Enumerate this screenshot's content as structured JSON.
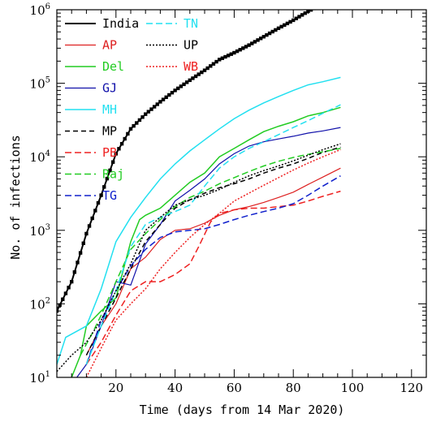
{
  "chart_data": {
    "type": "line",
    "xlabel": "Time (days from 14 Mar 2020)",
    "ylabel": "No. of infections",
    "xlim": [
      0,
      125
    ],
    "ylim": [
      10,
      1000000
    ],
    "yscale": "log",
    "x_ticks": [
      20,
      40,
      60,
      80,
      100,
      120
    ],
    "y_ticks": [
      {
        "value": 10,
        "base": "10",
        "exp": "1"
      },
      {
        "value": 100,
        "base": "10",
        "exp": "2"
      },
      {
        "value": 1000,
        "base": "10",
        "exp": "3"
      },
      {
        "value": 10000,
        "base": "10",
        "exp": "4"
      },
      {
        "value": 100000,
        "base": "10",
        "exp": "5"
      },
      {
        "value": 1000000,
        "base": "10",
        "exp": "6"
      }
    ],
    "legend_position": "top-left",
    "series": [
      {
        "name": "India",
        "color": "#000000",
        "dash": "solid",
        "width": 2,
        "markers": true,
        "x": [
          0,
          5,
          10,
          15,
          20,
          25,
          30,
          35,
          40,
          45,
          50,
          55,
          60,
          65,
          70,
          75,
          80,
          85,
          90,
          96
        ],
        "y": [
          80,
          200,
          900,
          3000,
          11000,
          24000,
          38000,
          56000,
          80000,
          110000,
          150000,
          210000,
          260000,
          330000,
          430000,
          560000,
          720000,
          950000,
          1200000,
          1550000
        ]
      },
      {
        "name": "AP",
        "color": "#dd2020",
        "dash": "solid",
        "width": 1.2,
        "x": [
          10,
          15,
          20,
          25,
          30,
          35,
          40,
          45,
          50,
          55,
          60,
          65,
          70,
          75,
          80,
          85,
          90,
          96
        ],
        "y": [
          20,
          50,
          100,
          300,
          430,
          750,
          1000,
          1050,
          1250,
          1600,
          1900,
          2100,
          2400,
          2800,
          3300,
          4200,
          5300,
          7000
        ]
      },
      {
        "name": "Del",
        "color": "#22cc22",
        "dash": "solid",
        "width": 1.5,
        "x": [
          5,
          8,
          10,
          15,
          20,
          25,
          28,
          30,
          35,
          40,
          45,
          50,
          55,
          60,
          65,
          70,
          75,
          80,
          85,
          90,
          96
        ],
        "y": [
          10,
          20,
          50,
          80,
          120,
          700,
          1400,
          1600,
          2000,
          3000,
          4500,
          6000,
          10000,
          13000,
          17000,
          22000,
          26000,
          30000,
          36000,
          40000,
          47000
        ]
      },
      {
        "name": "GJ",
        "color": "#1010aa",
        "dash": "solid",
        "width": 1.2,
        "x": [
          5,
          10,
          15,
          20,
          25,
          30,
          35,
          40,
          45,
          50,
          55,
          60,
          65,
          70,
          75,
          80,
          85,
          90,
          96
        ],
        "y": [
          8,
          15,
          50,
          200,
          180,
          650,
          1200,
          2500,
          3500,
          5000,
          8000,
          11000,
          14000,
          16000,
          17500,
          19000,
          21000,
          22500,
          25000
        ]
      },
      {
        "name": "MH",
        "color": "#22e0f0",
        "dash": "solid",
        "width": 1.5,
        "x": [
          0,
          3,
          10,
          15,
          20,
          25,
          30,
          35,
          40,
          45,
          50,
          55,
          60,
          65,
          70,
          75,
          80,
          85,
          90,
          96
        ],
        "y": [
          15,
          35,
          50,
          160,
          700,
          1500,
          2800,
          5000,
          8000,
          12000,
          17000,
          24000,
          33000,
          43000,
          54000,
          66000,
          80000,
          95000,
          105000,
          120000
        ]
      },
      {
        "name": "MP",
        "color": "#000000",
        "dash": "6,4",
        "width": 1.5,
        "x": [
          10,
          15,
          20,
          25,
          30,
          35,
          40,
          45,
          50,
          55,
          60,
          65,
          70,
          75,
          80,
          85,
          90,
          96
        ],
        "y": [
          20,
          50,
          120,
          300,
          700,
          1200,
          2000,
          2600,
          3200,
          3800,
          4300,
          5000,
          6000,
          7000,
          8000,
          9500,
          11500,
          13500
        ]
      },
      {
        "name": "PB",
        "color": "#ee2020",
        "dash": "8,4",
        "width": 1.5,
        "x": [
          10,
          15,
          20,
          25,
          30,
          35,
          40,
          45,
          48,
          52,
          55,
          60,
          65,
          70,
          75,
          80,
          85,
          90,
          96
        ],
        "y": [
          15,
          30,
          70,
          150,
          200,
          200,
          250,
          350,
          600,
          1300,
          1700,
          1900,
          2000,
          2000,
          2100,
          2200,
          2500,
          2900,
          3400
        ]
      },
      {
        "name": "Raj",
        "color": "#22cc22",
        "dash": "8,4",
        "width": 1.5,
        "x": [
          8,
          12,
          15,
          20,
          25,
          30,
          35,
          40,
          45,
          50,
          55,
          60,
          65,
          70,
          75,
          80,
          85,
          90,
          96
        ],
        "y": [
          20,
          40,
          70,
          200,
          550,
          900,
          1400,
          2100,
          2800,
          3400,
          4300,
          5200,
          6300,
          7500,
          8700,
          9800,
          10800,
          11700,
          13000
        ]
      },
      {
        "name": "TG",
        "color": "#1020cc",
        "dash": "8,4",
        "width": 1.5,
        "x": [
          10,
          15,
          20,
          25,
          30,
          35,
          40,
          45,
          50,
          55,
          60,
          65,
          70,
          75,
          80,
          85,
          90,
          96
        ],
        "y": [
          15,
          60,
          150,
          330,
          550,
          800,
          950,
          1000,
          1050,
          1200,
          1400,
          1600,
          1800,
          2000,
          2300,
          3000,
          4000,
          5500
        ]
      },
      {
        "name": "TN",
        "color": "#22e0f0",
        "dash": "8,4",
        "width": 1.5,
        "x": [
          10,
          15,
          20,
          25,
          30,
          35,
          40,
          45,
          50,
          55,
          60,
          65,
          70,
          75,
          80,
          85,
          90,
          96
        ],
        "y": [
          15,
          50,
          150,
          600,
          1200,
          1500,
          1800,
          2200,
          4000,
          7000,
          10000,
          13000,
          16000,
          20000,
          25000,
          31000,
          39000,
          51000
        ]
      },
      {
        "name": "UP",
        "color": "#000000",
        "dash": "2,2",
        "width": 1.5,
        "x": [
          0,
          5,
          10,
          15,
          20,
          25,
          30,
          35,
          40,
          45,
          50,
          55,
          60,
          65,
          70,
          75,
          80,
          85,
          90,
          96
        ],
        "y": [
          12,
          20,
          30,
          60,
          150,
          350,
          1000,
          1500,
          2200,
          2600,
          3000,
          3600,
          4500,
          5500,
          6500,
          7500,
          8800,
          10500,
          12500,
          15000
        ]
      },
      {
        "name": "WB",
        "color": "#ee2020",
        "dash": "2,2",
        "width": 1.5,
        "x": [
          10,
          15,
          20,
          25,
          30,
          35,
          40,
          45,
          50,
          55,
          60,
          65,
          70,
          75,
          80,
          85,
          90,
          96
        ],
        "y": [
          10,
          25,
          60,
          100,
          160,
          300,
          500,
          800,
          1200,
          1700,
          2500,
          3200,
          4100,
          5200,
          6600,
          8200,
          10000,
          12500
        ]
      }
    ]
  }
}
